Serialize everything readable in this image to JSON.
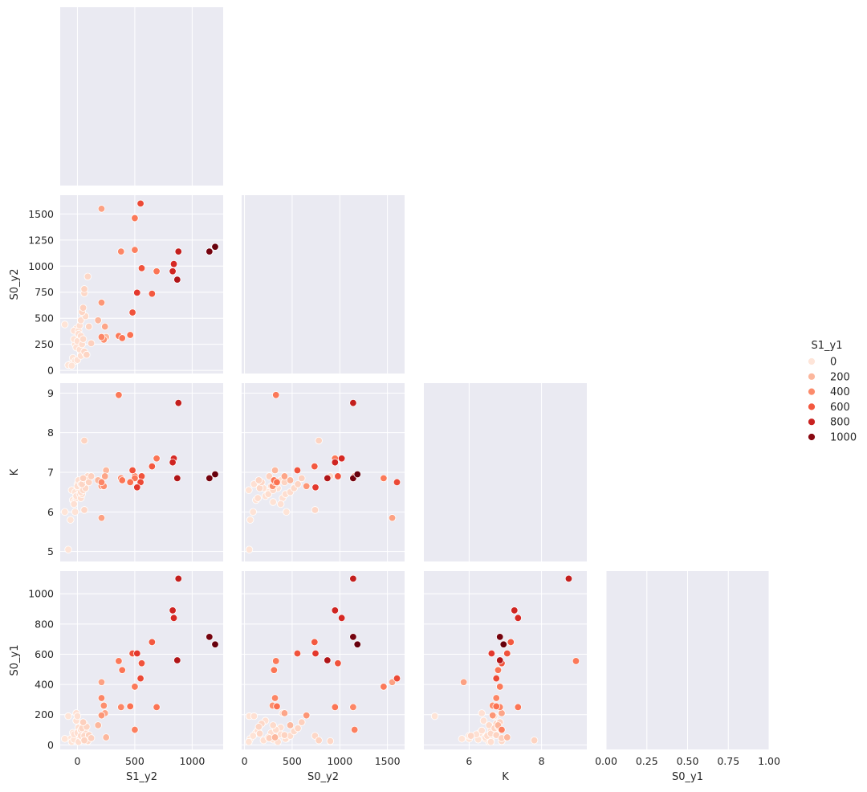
{
  "chart_data": {
    "type": "scatter",
    "title": "",
    "hue_variable": "S1_y1",
    "palette": [
      "#fee5d9",
      "#fcbba1",
      "#fc9272",
      "#fb6a4a",
      "#de2d26",
      "#a50f15",
      "#67000d"
    ],
    "hue_range": [
      0,
      1100
    ],
    "legend": {
      "title": "S1_y1",
      "placement": "right",
      "entries": [
        {
          "label": "0",
          "value": 0
        },
        {
          "label": "200",
          "value": 200
        },
        {
          "label": "400",
          "value": 400
        },
        {
          "label": "600",
          "value": 600
        },
        {
          "label": "800",
          "value": 800
        },
        {
          "label": "1000",
          "value": 1000
        }
      ]
    },
    "variables": [
      "S1_y2",
      "S0_y2",
      "K",
      "S0_y1"
    ],
    "axes": {
      "S1_y2": {
        "label": "S1_y2",
        "lim": [
          -150,
          1270
        ],
        "ticks": [
          0,
          500,
          1000
        ],
        "tick_labels": [
          "0",
          "500",
          "1000"
        ]
      },
      "S0_y2": {
        "label": "S0_y2",
        "lim": [
          -30,
          1680
        ],
        "ticks": [
          0,
          250,
          500,
          750,
          1000,
          1250,
          1500
        ],
        "tick_labels": [
          "0",
          "250",
          "500",
          "750",
          "1000",
          "1250",
          "1500"
        ],
        "x_ticks": [
          0,
          500,
          1000,
          1500
        ],
        "x_tick_labels": [
          "0",
          "500",
          "1000",
          "1500"
        ]
      },
      "K": {
        "label": "K",
        "lim": [
          4.75,
          9.25
        ],
        "ticks": [
          5,
          6,
          7,
          8,
          9
        ],
        "tick_labels": [
          "5",
          "6",
          "7",
          "8",
          "9"
        ],
        "x_ticks": [
          6,
          8
        ],
        "x_tick_labels": [
          "6",
          "8"
        ]
      },
      "S0_y1": {
        "label": "S0_y1",
        "lim": [
          -30,
          1150
        ],
        "ticks": [
          0,
          200,
          400,
          600,
          800,
          1000
        ],
        "tick_labels": [
          "0",
          "200",
          "400",
          "600",
          "800",
          "1000"
        ]
      },
      "S0_y1_x": {
        "label": "S0_y1",
        "lim": [
          0,
          1
        ],
        "ticks": [
          0,
          0.25,
          0.5,
          0.75,
          1.0
        ],
        "tick_labels": [
          "0.00",
          "0.25",
          "0.50",
          "0.75",
          "1.00"
        ]
      }
    },
    "points": [
      {
        "S1_y2": 210,
        "S0_y2": 1550,
        "K": 5.85,
        "S0_y1": 415,
        "S1_y1": 300
      },
      {
        "S1_y2": 550,
        "S0_y2": 1600,
        "K": 6.75,
        "S0_y1": 440,
        "S1_y1": 650
      },
      {
        "S1_y2": 500,
        "S0_y2": 1460,
        "K": 6.85,
        "S0_y1": 385,
        "S1_y1": 480
      },
      {
        "S1_y2": 1200,
        "S0_y2": 1185,
        "K": 6.95,
        "S0_y1": 665,
        "S1_y1": 1100
      },
      {
        "S1_y2": 1150,
        "S0_y2": 1140,
        "K": 6.85,
        "S0_y1": 715,
        "S1_y1": 1060
      },
      {
        "S1_y2": 880,
        "S0_y2": 1140,
        "K": 8.75,
        "S0_y1": 1100,
        "S1_y1": 820
      },
      {
        "S1_y2": 500,
        "S0_y2": 1155,
        "K": 6.9,
        "S0_y1": 100,
        "S1_y1": 450
      },
      {
        "S1_y2": 380,
        "S0_y2": 1140,
        "K": 6.85,
        "S0_y1": 250,
        "S1_y1": 420
      },
      {
        "S1_y2": 840,
        "S0_y2": 1020,
        "K": 7.35,
        "S0_y1": 840,
        "S1_y1": 760
      },
      {
        "S1_y2": 560,
        "S0_y2": 980,
        "K": 6.9,
        "S0_y1": 540,
        "S1_y1": 620
      },
      {
        "S1_y2": 830,
        "S0_y2": 950,
        "K": 7.25,
        "S0_y1": 890,
        "S1_y1": 780
      },
      {
        "S1_y2": 690,
        "S0_y2": 950,
        "K": 7.35,
        "S0_y1": 250,
        "S1_y1": 500
      },
      {
        "S1_y2": 870,
        "S0_y2": 870,
        "K": 6.85,
        "S0_y1": 560,
        "S1_y1": 880
      },
      {
        "S1_y2": 520,
        "S0_y2": 745,
        "K": 6.62,
        "S0_y1": 605,
        "S1_y1": 700
      },
      {
        "S1_y2": 650,
        "S0_y2": 735,
        "K": 7.15,
        "S0_y1": 680,
        "S1_y1": 600
      },
      {
        "S1_y2": 480,
        "S0_y2": 555,
        "K": 7.05,
        "S0_y1": 605,
        "S1_y1": 620
      },
      {
        "S1_y2": 210,
        "S0_y2": 650,
        "K": 6.65,
        "S0_y1": 195,
        "S1_y1": 350
      },
      {
        "S1_y2": 360,
        "S0_y2": 330,
        "K": 8.95,
        "S0_y1": 555,
        "S1_y1": 480
      },
      {
        "S1_y2": 390,
        "S0_y2": 310,
        "K": 6.8,
        "S0_y1": 495,
        "S1_y1": 500
      },
      {
        "S1_y2": 460,
        "S0_y2": 340,
        "K": 6.75,
        "S0_y1": 255,
        "S1_y1": 520
      },
      {
        "S1_y2": 210,
        "S0_y2": 320,
        "K": 6.75,
        "S0_y1": 310,
        "S1_y1": 420
      },
      {
        "S1_y2": 230,
        "S0_y2": 295,
        "K": 6.65,
        "S0_y1": 260,
        "S1_y1": 380
      },
      {
        "S1_y2": 240,
        "S0_y2": 420,
        "K": 6.9,
        "S0_y1": 210,
        "S1_y1": 280
      },
      {
        "S1_y2": 180,
        "S0_y2": 480,
        "K": 6.8,
        "S0_y1": 130,
        "S1_y1": 200
      },
      {
        "S1_y2": 250,
        "S0_y2": 320,
        "K": 7.05,
        "S0_y1": 50,
        "S1_y1": 200
      },
      {
        "S1_y2": 60,
        "S0_y2": 780,
        "K": 7.8,
        "S0_y1": 30,
        "S1_y1": 80
      },
      {
        "S1_y2": 90,
        "S0_y2": 900,
        "K": 6.9,
        "S0_y1": 25,
        "S1_y1": 60
      },
      {
        "S1_y2": 60,
        "S0_y2": 740,
        "K": 6.05,
        "S0_y1": 60,
        "S1_y1": 60
      },
      {
        "S1_y2": 50,
        "S0_y2": 600,
        "K": 6.85,
        "S0_y1": 150,
        "S1_y1": 90
      },
      {
        "S1_y2": 40,
        "S0_y2": 560,
        "K": 6.7,
        "S0_y1": 110,
        "S1_y1": 70
      },
      {
        "S1_y2": 70,
        "S0_y2": 520,
        "K": 6.6,
        "S0_y1": 90,
        "S1_y1": 50
      },
      {
        "S1_y2": 30,
        "S0_y2": 480,
        "K": 6.5,
        "S0_y1": 60,
        "S1_y1": 40
      },
      {
        "S1_y2": 20,
        "S0_y2": 430,
        "K": 6.45,
        "S0_y1": 40,
        "S1_y1": 30
      },
      {
        "S1_y2": -10,
        "S0_y2": 400,
        "K": 6.35,
        "S0_y1": 210,
        "S1_y1": 20
      },
      {
        "S1_y2": -30,
        "S0_y2": 380,
        "K": 6.2,
        "S0_y1": 70,
        "S1_y1": 20
      },
      {
        "S1_y2": 10,
        "S0_y2": 350,
        "K": 6.6,
        "S0_y1": 20,
        "S1_y1": 30
      },
      {
        "S1_y2": 30,
        "S0_y2": 330,
        "K": 6.7,
        "S0_y1": 100,
        "S1_y1": 40
      },
      {
        "S1_y2": 50,
        "S0_y2": 300,
        "K": 6.55,
        "S0_y1": 130,
        "S1_y1": 50
      },
      {
        "S1_y2": 0,
        "S0_y2": 280,
        "K": 6.65,
        "S0_y1": 80,
        "S1_y1": 30
      },
      {
        "S1_y2": -20,
        "S0_y2": 250,
        "K": 6.5,
        "S0_y1": 50,
        "S1_y1": 15
      },
      {
        "S1_y2": -10,
        "S0_y2": 220,
        "K": 6.4,
        "S0_y1": 160,
        "S1_y1": 20
      },
      {
        "S1_y2": 20,
        "S0_y2": 200,
        "K": 6.6,
        "S0_y1": 30,
        "S1_y1": 25
      },
      {
        "S1_y2": 60,
        "S0_y2": 180,
        "K": 6.75,
        "S0_y1": 140,
        "S1_y1": 60
      },
      {
        "S1_y2": 80,
        "S0_y2": 150,
        "K": 6.8,
        "S0_y1": 120,
        "S1_y1": 70
      },
      {
        "S1_y2": -40,
        "S0_y2": 120,
        "K": 6.3,
        "S0_y1": 80,
        "S1_y1": 10
      },
      {
        "S1_y2": -20,
        "S0_y2": 90,
        "K": 6.0,
        "S0_y1": 60,
        "S1_y1": 10
      },
      {
        "S1_y2": -60,
        "S0_y2": 60,
        "K": 5.8,
        "S0_y1": 40,
        "S1_y1": 5
      },
      {
        "S1_y2": -80,
        "S0_y2": 50,
        "K": 5.05,
        "S0_y1": 190,
        "S1_y1": 5
      },
      {
        "S1_y2": -110,
        "S0_y2": 440,
        "K": 6.0,
        "S0_y1": 40,
        "S1_y1": 5
      },
      {
        "S1_y2": -50,
        "S0_y2": 45,
        "K": 6.55,
        "S0_y1": 20,
        "S1_y1": 10
      },
      {
        "S1_y2": 0,
        "S0_y2": 100,
        "K": 6.7,
        "S0_y1": 190,
        "S1_y1": 20
      },
      {
        "S1_y2": 40,
        "S0_y2": 250,
        "K": 6.45,
        "S0_y1": 50,
        "S1_y1": 35
      },
      {
        "S1_y2": 10,
        "S0_y2": 380,
        "K": 6.8,
        "S0_y1": 115,
        "S1_y1": 25
      },
      {
        "S1_y2": 70,
        "S0_y2": 160,
        "K": 6.6,
        "S0_y1": 75,
        "S1_y1": 55
      },
      {
        "S1_y2": -30,
        "S0_y2": 300,
        "K": 6.25,
        "S0_y1": 35,
        "S1_y1": 15
      },
      {
        "S1_y2": 30,
        "S0_y2": 140,
        "K": 6.35,
        "S0_y1": 95,
        "S1_y1": 30
      },
      {
        "S1_y2": 100,
        "S0_y2": 420,
        "K": 6.75,
        "S0_y1": 65,
        "S1_y1": 80
      },
      {
        "S1_y2": 120,
        "S0_y2": 260,
        "K": 6.9,
        "S0_y1": 45,
        "S1_y1": 90
      }
    ]
  }
}
